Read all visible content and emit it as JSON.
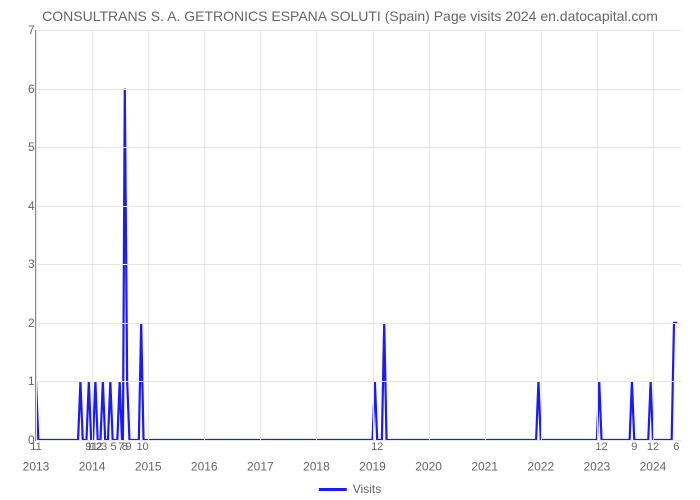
{
  "chart": {
    "type": "line",
    "title": "CONSULTRANS S. A. GETRONICS ESPANA SOLUTI (Spain) Page visits 2024 en.datocapital.com",
    "title_color": "#666666",
    "title_fontsize": 14,
    "background_color": "#ffffff",
    "plot_border_color": "#888888",
    "grid_color": "#e6e6e6",
    "line_color": "#1a1aff",
    "line_width": 2.2,
    "x_domain": [
      0,
      138
    ],
    "y_domain": [
      0,
      7
    ],
    "ytick_step": 1,
    "year_ticks": [
      {
        "x": 0,
        "label": "2013"
      },
      {
        "x": 12,
        "label": "2014"
      },
      {
        "x": 24,
        "label": "2015"
      },
      {
        "x": 36,
        "label": "2016"
      },
      {
        "x": 48,
        "label": "2017"
      },
      {
        "x": 60,
        "label": "2018"
      },
      {
        "x": 72,
        "label": "2019"
      },
      {
        "x": 84,
        "label": "2020"
      },
      {
        "x": 96,
        "label": "2021"
      },
      {
        "x": 108,
        "label": "2022"
      },
      {
        "x": 120,
        "label": "2023"
      },
      {
        "x": 132,
        "label": "2024"
      }
    ],
    "minor_ticks": [
      {
        "x": 0,
        "label": "11"
      },
      {
        "x": 11.2,
        "label": "9"
      },
      {
        "x": 12.0,
        "label": "11"
      },
      {
        "x": 12.8,
        "label": "12"
      },
      {
        "x": 13.6,
        "label": "2"
      },
      {
        "x": 14.6,
        "label": "3"
      },
      {
        "x": 16.6,
        "label": "5"
      },
      {
        "x": 18.2,
        "label": "7"
      },
      {
        "x": 19.0,
        "label": "8"
      },
      {
        "x": 19.8,
        "label": "9"
      },
      {
        "x": 22.8,
        "label": "10"
      },
      {
        "x": 73.0,
        "label": "12"
      },
      {
        "x": 121.0,
        "label": "12"
      },
      {
        "x": 128.0,
        "label": "9"
      },
      {
        "x": 132.0,
        "label": "12"
      },
      {
        "x": 137.0,
        "label": "6"
      }
    ],
    "series": {
      "name": "Visits",
      "points": [
        [
          0,
          1
        ],
        [
          0.5,
          0
        ],
        [
          9,
          0
        ],
        [
          9.5,
          1
        ],
        [
          10,
          0
        ],
        [
          10.8,
          0
        ],
        [
          11.3,
          1
        ],
        [
          11.8,
          0
        ],
        [
          12.2,
          0
        ],
        [
          12.7,
          1
        ],
        [
          13.2,
          0
        ],
        [
          13.8,
          0
        ],
        [
          14.3,
          1
        ],
        [
          14.8,
          0
        ],
        [
          15.4,
          0
        ],
        [
          15.9,
          1
        ],
        [
          16.4,
          0
        ],
        [
          17.4,
          0
        ],
        [
          17.9,
          1
        ],
        [
          18.4,
          0
        ],
        [
          18.6,
          0
        ],
        [
          19,
          6
        ],
        [
          19.5,
          1
        ],
        [
          20,
          0
        ],
        [
          22,
          0
        ],
        [
          22.5,
          2
        ],
        [
          23,
          0
        ],
        [
          24,
          0
        ],
        [
          72,
          0
        ],
        [
          72.5,
          1
        ],
        [
          73,
          0
        ],
        [
          74,
          0
        ],
        [
          74.5,
          2
        ],
        [
          75,
          0
        ],
        [
          107,
          0
        ],
        [
          107.5,
          1
        ],
        [
          108,
          0
        ],
        [
          120,
          0
        ],
        [
          120.5,
          1
        ],
        [
          121,
          0
        ],
        [
          127,
          0
        ],
        [
          127.5,
          1
        ],
        [
          128,
          0
        ],
        [
          131,
          0
        ],
        [
          131.5,
          1
        ],
        [
          132,
          0
        ],
        [
          136,
          0
        ],
        [
          136.5,
          2
        ],
        [
          137.2,
          2
        ]
      ]
    },
    "legend_label": "Visits"
  }
}
